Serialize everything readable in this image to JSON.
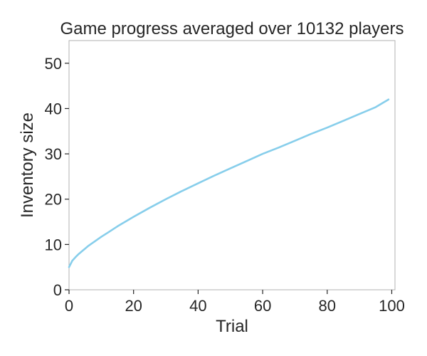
{
  "chart_data": {
    "type": "line",
    "title": "Game progress averaged over 10132 players",
    "xlabel": "Trial",
    "ylabel": "Inventory size",
    "xlim": [
      0,
      101
    ],
    "ylim": [
      0,
      55
    ],
    "xticks": [
      0,
      20,
      40,
      60,
      80,
      100
    ],
    "yticks": [
      0,
      10,
      20,
      30,
      40,
      50
    ],
    "grid": false,
    "series": [
      {
        "color": "#87CEEB",
        "x": [
          0,
          1,
          2,
          3,
          4,
          5,
          6,
          8,
          10,
          12,
          15,
          20,
          25,
          30,
          35,
          40,
          45,
          50,
          55,
          60,
          65,
          70,
          75,
          80,
          85,
          90,
          95,
          99
        ],
        "y": [
          5.0,
          6.4,
          7.2,
          7.9,
          8.5,
          9.1,
          9.7,
          10.7,
          11.7,
          12.6,
          14.0,
          16.1,
          18.1,
          20.0,
          21.8,
          23.5,
          25.2,
          26.8,
          28.4,
          30.0,
          31.4,
          32.9,
          34.4,
          35.8,
          37.3,
          38.8,
          40.3,
          42.0
        ]
      }
    ]
  }
}
